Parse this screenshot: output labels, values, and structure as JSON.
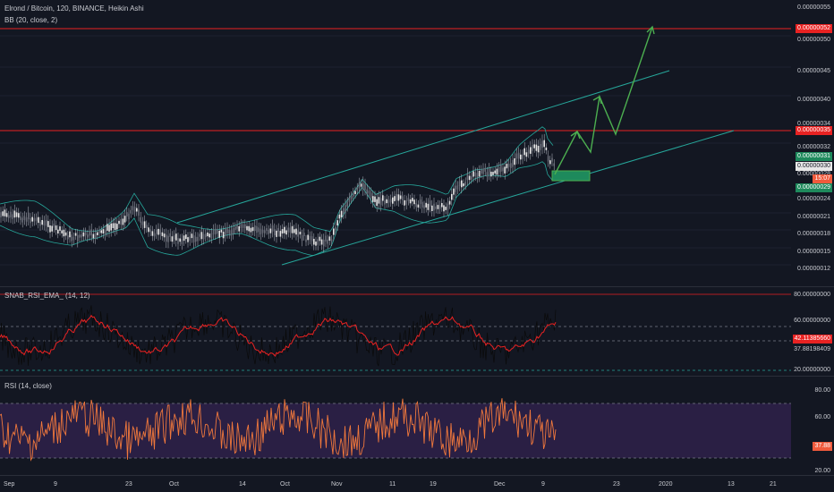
{
  "main": {
    "title": "Elrond / Bitcoin, 120, BINANCE, Heikin Ashi",
    "indicator": "BB (20, close, 2)",
    "levels": [
      {
        "text": "0.00000055"
      },
      {
        "text": "0.00000050"
      },
      {
        "text": "0.00000045"
      },
      {
        "text": "0.00000040"
      },
      {
        "text": "0.00000032"
      },
      {
        "text": "0.00000024"
      },
      {
        "text": "0.00000021"
      },
      {
        "text": "0.00000018"
      },
      {
        "text": "0.00000015"
      },
      {
        "text": "0.00000012"
      }
    ],
    "labels": {
      "res1": "0.00000052",
      "res2": "0.00000035",
      "upper": "0.00000034",
      "band1": "0.00000031",
      "last": "0.00000030",
      "countdown": "15:07",
      "mid": "0.00000028",
      "band2": "0.00000029"
    },
    "colors": {
      "resistance": "#e82222",
      "channel": "#26a69a",
      "projection": "#4caf50",
      "zone": "#1e8a5c"
    }
  },
  "snab": {
    "title": "SNAB_RSI_EMA_ (14, 12)",
    "levels": [
      {
        "text": "80.00000000"
      },
      {
        "text": "60.00000000"
      },
      {
        "text": "20.00000000"
      }
    ],
    "labels": {
      "value1": "42.11385660",
      "value2": "37.88198409"
    }
  },
  "rsi": {
    "title": "RSI (14, close)",
    "levels": [
      {
        "text": "80.00"
      },
      {
        "text": "60.00"
      },
      {
        "text": "20.00"
      }
    ],
    "labels": {
      "value": "37.88"
    }
  },
  "xaxis": [
    "Sep",
    "9",
    "23",
    "Oct",
    "14",
    "Oct",
    "Nov",
    "11",
    "19",
    "Dec",
    "9",
    "23",
    "2020",
    "13",
    "21"
  ]
}
